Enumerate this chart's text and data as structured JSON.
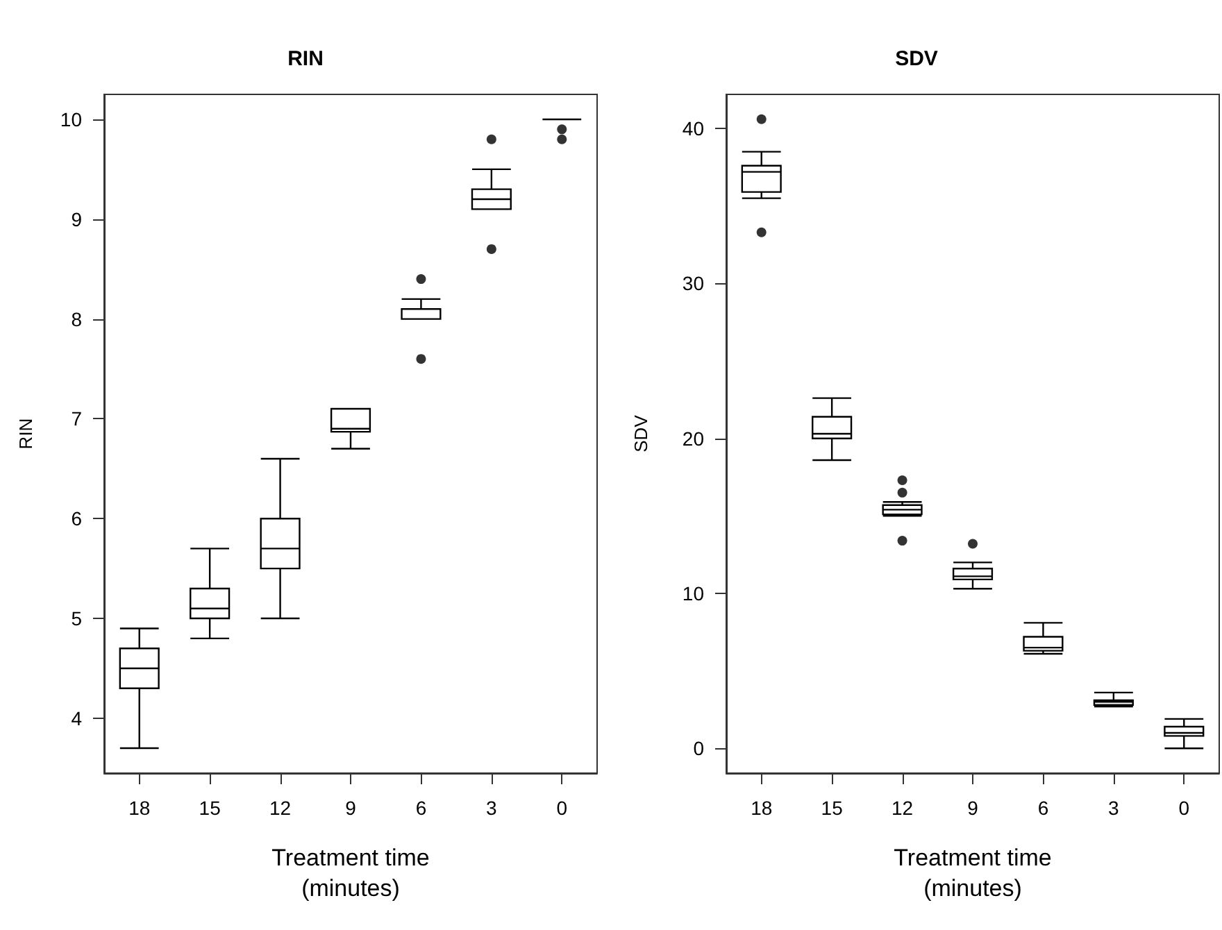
{
  "chart_data": [
    {
      "type": "box",
      "title": "RIN",
      "xlabel": "Treatment time\n(minutes)",
      "ylabel": "RIN",
      "categories": [
        "18",
        "15",
        "12",
        "9",
        "6",
        "3",
        "0"
      ],
      "color": "#000000",
      "ylim": [
        3.45,
        10.25
      ],
      "yticks": [
        4,
        5,
        6,
        7,
        8,
        9,
        10
      ],
      "grid": false,
      "marker": "circle",
      "boxes": [
        {
          "low": 3.7,
          "q1": 4.3,
          "median": 4.5,
          "q3": 4.7,
          "high": 4.9
        },
        {
          "low": 4.8,
          "q1": 5.0,
          "median": 5.1,
          "q3": 5.3,
          "high": 5.7
        },
        {
          "low": 5.0,
          "q1": 5.5,
          "median": 5.7,
          "q3": 6.0,
          "high": 6.6
        },
        {
          "low": 6.7,
          "q1": 6.87,
          "median": 6.9,
          "q3": 7.1,
          "high": 7.1
        },
        {
          "low": 8.0,
          "q1": 8.0,
          "median": 8.0,
          "q3": 8.1,
          "high": 8.2,
          "outliers": [
            8.4,
            7.6
          ]
        },
        {
          "low": 9.1,
          "q1": 9.1,
          "median": 9.2,
          "q3": 9.3,
          "high": 9.5,
          "outliers": [
            9.8,
            8.7
          ]
        },
        {
          "low": 10,
          "q1": 10,
          "median": 10,
          "q3": 10,
          "high": 10,
          "outliers": [
            9.9,
            9.8
          ]
        }
      ]
    },
    {
      "type": "box",
      "title": "SDV",
      "xlabel": "Treatment time\n(minutes)",
      "ylabel": "SDV",
      "categories": [
        "18",
        "15",
        "12",
        "9",
        "6",
        "3",
        "0"
      ],
      "color": "#000000",
      "ylim": [
        -1.6,
        42.2
      ],
      "yticks": [
        0,
        10,
        20,
        30,
        40
      ],
      "grid": false,
      "marker": "circle",
      "boxes": [
        {
          "low": 35.5,
          "q1": 35.9,
          "median": 37.2,
          "q3": 37.6,
          "high": 38.5,
          "outliers": [
            40.6,
            33.3
          ]
        },
        {
          "low": 18.6,
          "q1": 20.0,
          "median": 20.3,
          "q3": 21.4,
          "high": 22.6
        },
        {
          "low": 15.0,
          "q1": 15.1,
          "median": 15.4,
          "q3": 15.7,
          "high": 15.9,
          "outliers": [
            17.3,
            16.5,
            13.4
          ]
        },
        {
          "low": 10.3,
          "q1": 10.9,
          "median": 11.1,
          "q3": 11.6,
          "high": 12.0,
          "outliers": [
            13.2
          ]
        },
        {
          "low": 6.1,
          "q1": 6.3,
          "median": 6.5,
          "q3": 7.2,
          "high": 8.1
        },
        {
          "low": 2.7,
          "q1": 2.8,
          "median": 3.0,
          "q3": 3.1,
          "high": 3.6
        },
        {
          "low": 0.0,
          "q1": 0.8,
          "median": 1.0,
          "q3": 1.4,
          "high": 1.9
        }
      ]
    }
  ]
}
